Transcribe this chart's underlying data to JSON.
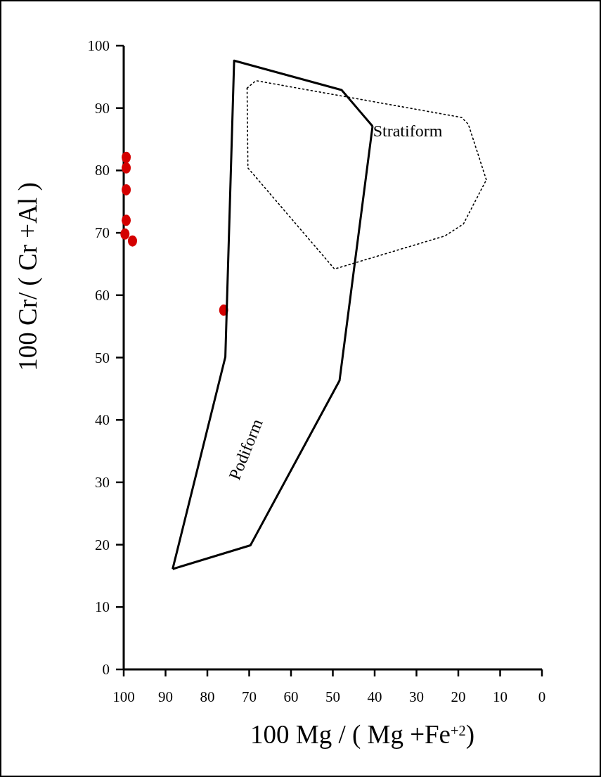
{
  "chart_data": {
    "type": "scatter",
    "xlabel": "100 Mg / ( Mg +Fe$^{+2}$)",
    "ylabel": "100 Cr/ ( Cr +Al )",
    "xlim": [
      100,
      0
    ],
    "ylim": [
      0,
      100
    ],
    "xticks": [
      100,
      90,
      80,
      70,
      60,
      50,
      40,
      30,
      20,
      10,
      0
    ],
    "yticks": [
      0,
      10,
      20,
      30,
      40,
      50,
      60,
      70,
      80,
      90,
      100
    ],
    "grid": false,
    "series": [
      {
        "color": "#d40000",
        "marker": "circle",
        "x": [
          99.4,
          99.4,
          99.4,
          99.4,
          99.7,
          97.9,
          76.1
        ],
        "values": [
          82.1,
          80.4,
          76.9,
          72.0,
          69.8,
          68.7,
          57.6
        ]
      },
      {
        "type": "line",
        "color": "#000000",
        "marker": "none",
        "line_style": "solid",
        "x": [
          88.3,
          75.7,
          73.6,
          47.9,
          40.5
        ],
        "values": [
          16.1,
          50.1,
          97.6,
          92.9,
          87.1
        ]
      },
      {
        "type": "line",
        "color": "#000000",
        "marker": "none",
        "line_style": "solid",
        "x": [
          88.3,
          69.7,
          48.4,
          40.5
        ],
        "values": [
          16.1,
          19.9,
          46.3,
          87.1
        ]
      },
      {
        "type": "line",
        "color": "#000000",
        "marker": "none",
        "line_style": "dotted",
        "x": [
          70.5,
          68.4,
          19.2,
          17.6,
          13.3
        ],
        "values": [
          93.2,
          94.4,
          88.5,
          87.4,
          78.5
        ]
      },
      {
        "type": "line",
        "color": "#000000",
        "marker": "none",
        "line_style": "dotted",
        "x": [
          70.5,
          70.3,
          49.6,
          23.2,
          18.8,
          13.3
        ],
        "values": [
          93.2,
          80.4,
          64.2,
          69.5,
          71.4,
          78.5
        ]
      }
    ],
    "annotations": [
      "Stratiform",
      "Podiform"
    ]
  }
}
